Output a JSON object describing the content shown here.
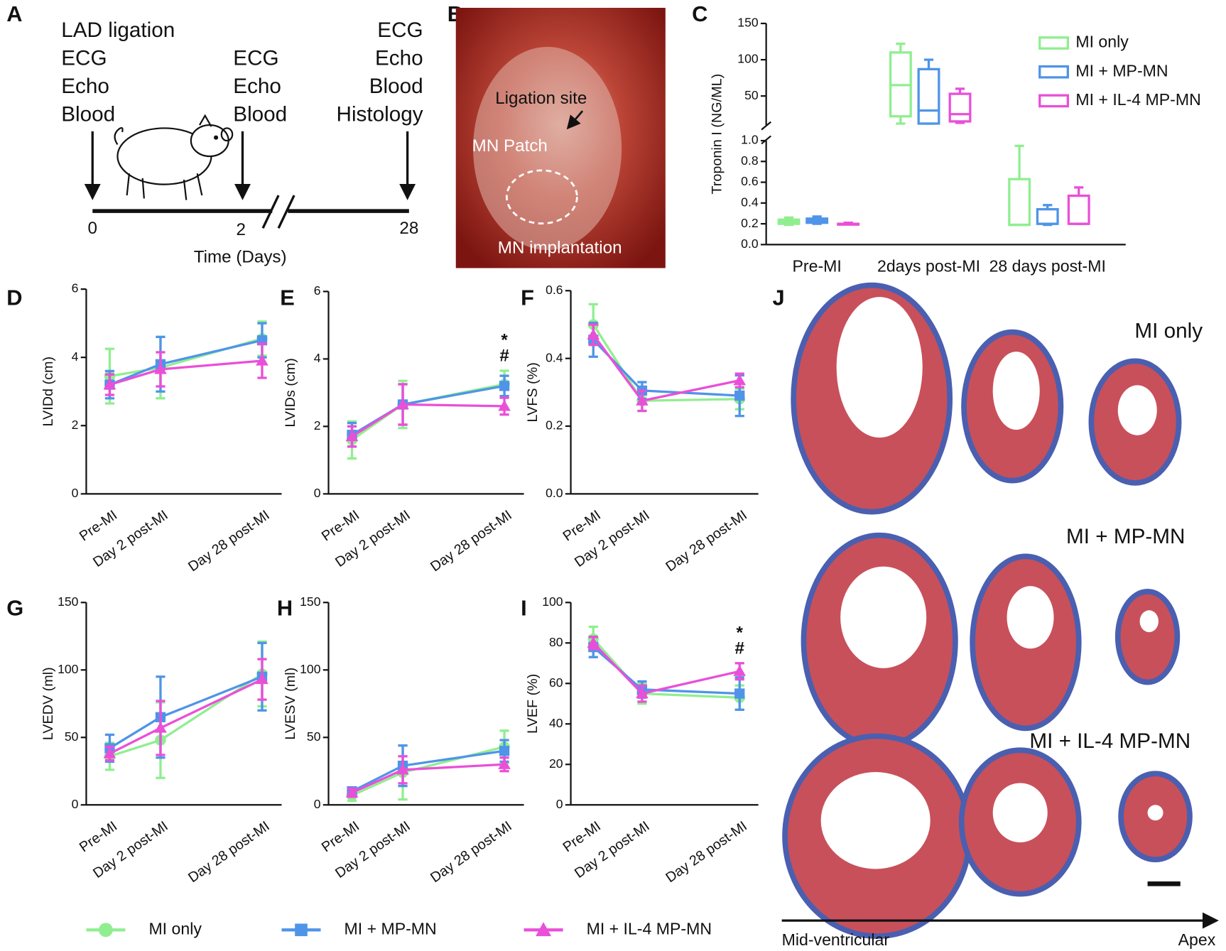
{
  "panel_a": {
    "label": "A",
    "day0": [
      "LAD ligation",
      "ECG",
      "Echo",
      "Blood"
    ],
    "day2": [
      "ECG",
      "Echo",
      "Blood"
    ],
    "day28": [
      "ECG",
      "Echo",
      "Blood",
      "Histology"
    ],
    "ticks": [
      "0",
      "2",
      "28"
    ],
    "xlabel": "Time (Days)"
  },
  "panel_b": {
    "label": "B",
    "annotations": [
      "Ligation site",
      "MN Patch",
      "MN implantation"
    ]
  },
  "chart_data": [
    {
      "type": "box",
      "label": "C",
      "ylabel": "Troponin I (NG/ML)",
      "categories": [
        "Pre-MI",
        "2days post-MI",
        "28 days post-MI"
      ],
      "ylim": [
        0,
        1
      ],
      "yticks": [
        {
          "value": 0,
          "label": "0.0"
        },
        0.2,
        0.4,
        0.6,
        0.8,
        {
          "value": 1,
          "label": "1.0"
        }
      ],
      "ylim_upper": [
        10,
        150
      ],
      "yticks_upper": [
        50,
        100,
        150
      ],
      "legend": "upper right",
      "series": [
        {
          "name": "MI only",
          "color": "#90ee90",
          "values": [
            [
              0.19,
              0.2,
              0.22,
              0.24,
              0.26
            ],
            [
              12,
              22,
              65,
              110,
              122
            ],
            [
              0.19,
              0.19,
              0.19,
              0.63,
              0.95
            ]
          ]
        },
        {
          "name": "MI + MP-MN",
          "color": "#4f94e8",
          "values": [
            [
              0.2,
              0.21,
              0.23,
              0.25,
              0.27
            ],
            [
              12,
              12,
              30,
              87,
              100
            ],
            [
              0.19,
              0.2,
              0.2,
              0.34,
              0.38
            ]
          ]
        },
        {
          "name": "MI + IL-4 MP-MN",
          "color": "#ea4fd8",
          "values": [
            [
              0.2,
              0.2,
              0.2,
              0.2,
              0.21
            ],
            [
              13,
              15,
              25,
              53,
              60
            ],
            [
              0.2,
              0.2,
              0.2,
              0.47,
              0.55
            ]
          ]
        }
      ]
    },
    {
      "type": "line",
      "label": "D",
      "ylabel": "LVIDd (cm)",
      "categories": [
        "Pre-MI",
        "Day 2 post-MI",
        "Day 28 post-MI"
      ],
      "ylim": [
        0,
        6
      ],
      "yticks": [
        0,
        2,
        4,
        6
      ],
      "series": [
        {
          "name": "MI only",
          "color": "#90ee90",
          "marker": "circle",
          "values": [
            3.45,
            3.7,
            4.55
          ],
          "errors": [
            0.8,
            0.9,
            0.5
          ]
        },
        {
          "name": "MI + MP-MN",
          "color": "#4f94e8",
          "marker": "square",
          "values": [
            3.2,
            3.8,
            4.5
          ],
          "errors": [
            0.4,
            0.8,
            0.5
          ]
        },
        {
          "name": "MI + IL-4 MP-MN",
          "color": "#ea4fd8",
          "marker": "triangle",
          "values": [
            3.2,
            3.65,
            3.9
          ],
          "errors": [
            0.3,
            0.5,
            0.5
          ]
        }
      ]
    },
    {
      "type": "line",
      "label": "E",
      "ylabel": "LVIDs (cm)",
      "categories": [
        "Pre-MI",
        "Day 2 post-MI",
        "Day 28 post-MI"
      ],
      "ylim": [
        0,
        6
      ],
      "yticks": [
        0,
        2,
        4,
        6
      ],
      "annotations": [
        "*",
        "#"
      ],
      "series": [
        {
          "name": "MI only",
          "color": "#90ee90",
          "marker": "circle",
          "values": [
            1.6,
            2.65,
            3.25
          ],
          "errors": [
            0.55,
            0.7,
            0.4
          ]
        },
        {
          "name": "MI + MP-MN",
          "color": "#4f94e8",
          "marker": "square",
          "values": [
            1.75,
            2.65,
            3.2
          ],
          "errors": [
            0.35,
            0.6,
            0.3
          ]
        },
        {
          "name": "MI + IL-4 MP-MN",
          "color": "#ea4fd8",
          "marker": "triangle",
          "values": [
            1.7,
            2.65,
            2.6
          ],
          "errors": [
            0.3,
            0.6,
            0.25
          ]
        }
      ]
    },
    {
      "type": "line",
      "label": "F",
      "ylabel": "LVFS (%)",
      "categories": [
        "Pre-MI",
        "Day 2 post-MI",
        "Day 28 post-MI"
      ],
      "ylim": [
        0,
        0.6
      ],
      "yticks": [
        {
          "value": 0,
          "label": "0.0"
        },
        0.2,
        0.4,
        0.6
      ],
      "series": [
        {
          "name": "MI only",
          "color": "#90ee90",
          "marker": "circle",
          "values": [
            0.5,
            0.275,
            0.28
          ],
          "errors": [
            0.06,
            0.03,
            0.03
          ]
        },
        {
          "name": "MI + MP-MN",
          "color": "#4f94e8",
          "marker": "square",
          "values": [
            0.455,
            0.305,
            0.29
          ],
          "errors": [
            0.05,
            0.025,
            0.06
          ]
        },
        {
          "name": "MI + IL-4 MP-MN",
          "color": "#ea4fd8",
          "marker": "triangle",
          "values": [
            0.47,
            0.275,
            0.335
          ],
          "errors": [
            0.03,
            0.03,
            0.02
          ]
        }
      ]
    },
    {
      "type": "line",
      "label": "G",
      "ylabel": "LVEDV (ml)",
      "categories": [
        "Pre-MI",
        "Day 2 post-MI",
        "Day 28 post-MI"
      ],
      "ylim": [
        0,
        150
      ],
      "yticks": [
        0,
        50,
        100,
        150
      ],
      "series": [
        {
          "name": "MI only",
          "color": "#90ee90",
          "marker": "circle",
          "values": [
            36,
            48,
            97
          ],
          "errors": [
            10,
            28,
            24
          ]
        },
        {
          "name": "MI + MP-MN",
          "color": "#4f94e8",
          "marker": "square",
          "values": [
            42,
            65,
            95
          ],
          "errors": [
            10,
            30,
            25
          ]
        },
        {
          "name": "MI + IL-4 MP-MN",
          "color": "#ea4fd8",
          "marker": "triangle",
          "values": [
            38,
            57,
            93
          ],
          "errors": [
            5,
            20,
            15
          ]
        }
      ]
    },
    {
      "type": "line",
      "label": "H",
      "ylabel": "LVESV (ml)",
      "categories": [
        "Pre-MI",
        "Day 2 post-MI",
        "Day 28 post-MI"
      ],
      "ylim": [
        0,
        150
      ],
      "yticks": [
        0,
        50,
        100,
        150
      ],
      "series": [
        {
          "name": "MI only",
          "color": "#90ee90",
          "marker": "circle",
          "values": [
            7,
            24,
            43
          ],
          "errors": [
            4,
            20,
            12
          ]
        },
        {
          "name": "MI + MP-MN",
          "color": "#4f94e8",
          "marker": "square",
          "values": [
            10,
            29,
            40
          ],
          "errors": [
            3,
            15,
            8
          ]
        },
        {
          "name": "MI + IL-4 MP-MN",
          "color": "#ea4fd8",
          "marker": "triangle",
          "values": [
            9,
            26,
            30
          ],
          "errors": [
            3,
            10,
            5
          ]
        }
      ]
    },
    {
      "type": "line",
      "label": "I",
      "ylabel": "LVEF (%)",
      "categories": [
        "Pre-MI",
        "Day 2 post-MI",
        "Day 28 post-MI"
      ],
      "ylim": [
        0,
        100
      ],
      "yticks": [
        0,
        20,
        40,
        60,
        80,
        100
      ],
      "annotations": [
        "*",
        "#"
      ],
      "series": [
        {
          "name": "MI only",
          "color": "#90ee90",
          "marker": "circle",
          "values": [
            82,
            55,
            53
          ],
          "errors": [
            6,
            5,
            6
          ]
        },
        {
          "name": "MI + MP-MN",
          "color": "#4f94e8",
          "marker": "square",
          "values": [
            78,
            57,
            55
          ],
          "errors": [
            5,
            4,
            8
          ]
        },
        {
          "name": "MI + IL-4 MP-MN",
          "color": "#ea4fd8",
          "marker": "triangle",
          "values": [
            80,
            55,
            66
          ],
          "errors": [
            3,
            4,
            4
          ]
        }
      ]
    }
  ],
  "panel_j": {
    "label": "J",
    "rows": [
      "MI only",
      "MI + MP-MN",
      "MI + IL-4 MP-MN"
    ],
    "axis_start": "Mid-ventricular",
    "axis_end": "Apex"
  }
}
